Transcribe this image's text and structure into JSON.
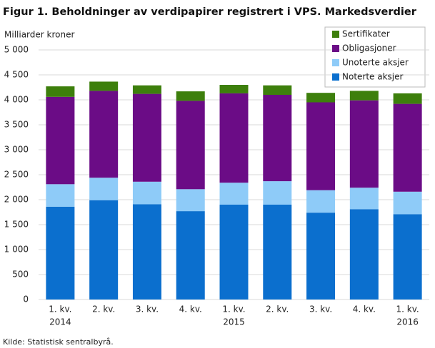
{
  "chart_data": {
    "type": "stacked_bar",
    "title": "Figur 1. Beholdninger av verdipapirer registrert i VPS. Markedsverdier",
    "y_axis_label": "Milliarder  kroner",
    "source": "Kilde: Statistisk sentralbyrå.",
    "categories": [
      "1. kv.",
      "2. kv.",
      "3. kv.",
      "4. kv.",
      "1. kv.",
      "2. kv.",
      "3. kv.",
      "4. kv.",
      "1. kv."
    ],
    "year_labels": [
      "2014",
      null,
      null,
      null,
      "2015",
      null,
      null,
      null,
      "2016"
    ],
    "series": [
      {
        "name": "Noterte aksjer",
        "color": "#0b6fce",
        "values": [
          1860,
          1990,
          1910,
          1770,
          1900,
          1900,
          1740,
          1810,
          1710
        ]
      },
      {
        "name": "Unoterte aksjer",
        "color": "#8ecbf8",
        "values": [
          450,
          450,
          450,
          440,
          440,
          470,
          450,
          430,
          450
        ]
      },
      {
        "name": "Obligasjoner",
        "color": "#6b0c86",
        "values": [
          1750,
          1740,
          1760,
          1770,
          1790,
          1730,
          1760,
          1750,
          1760
        ]
      },
      {
        "name": "Sertifikater",
        "color": "#3d7f0c",
        "values": [
          210,
          185,
          170,
          190,
          170,
          190,
          190,
          190,
          210
        ]
      }
    ],
    "ylim": [
      0,
      5000
    ],
    "yticks": [
      {
        "value": 0,
        "label": "0"
      },
      {
        "value": 500,
        "label": "500"
      },
      {
        "value": 1000,
        "label": "1 000"
      },
      {
        "value": 1500,
        "label": "1 500"
      },
      {
        "value": 2000,
        "label": "2 000"
      },
      {
        "value": 2500,
        "label": "2 500"
      },
      {
        "value": 3000,
        "label": "3 000"
      },
      {
        "value": 3500,
        "label": "3 500"
      },
      {
        "value": 4000,
        "label": "4 000"
      },
      {
        "value": 4500,
        "label": "4 500"
      },
      {
        "value": 5000,
        "label": "5 000"
      }
    ],
    "grid": true,
    "legend": "top-right"
  }
}
